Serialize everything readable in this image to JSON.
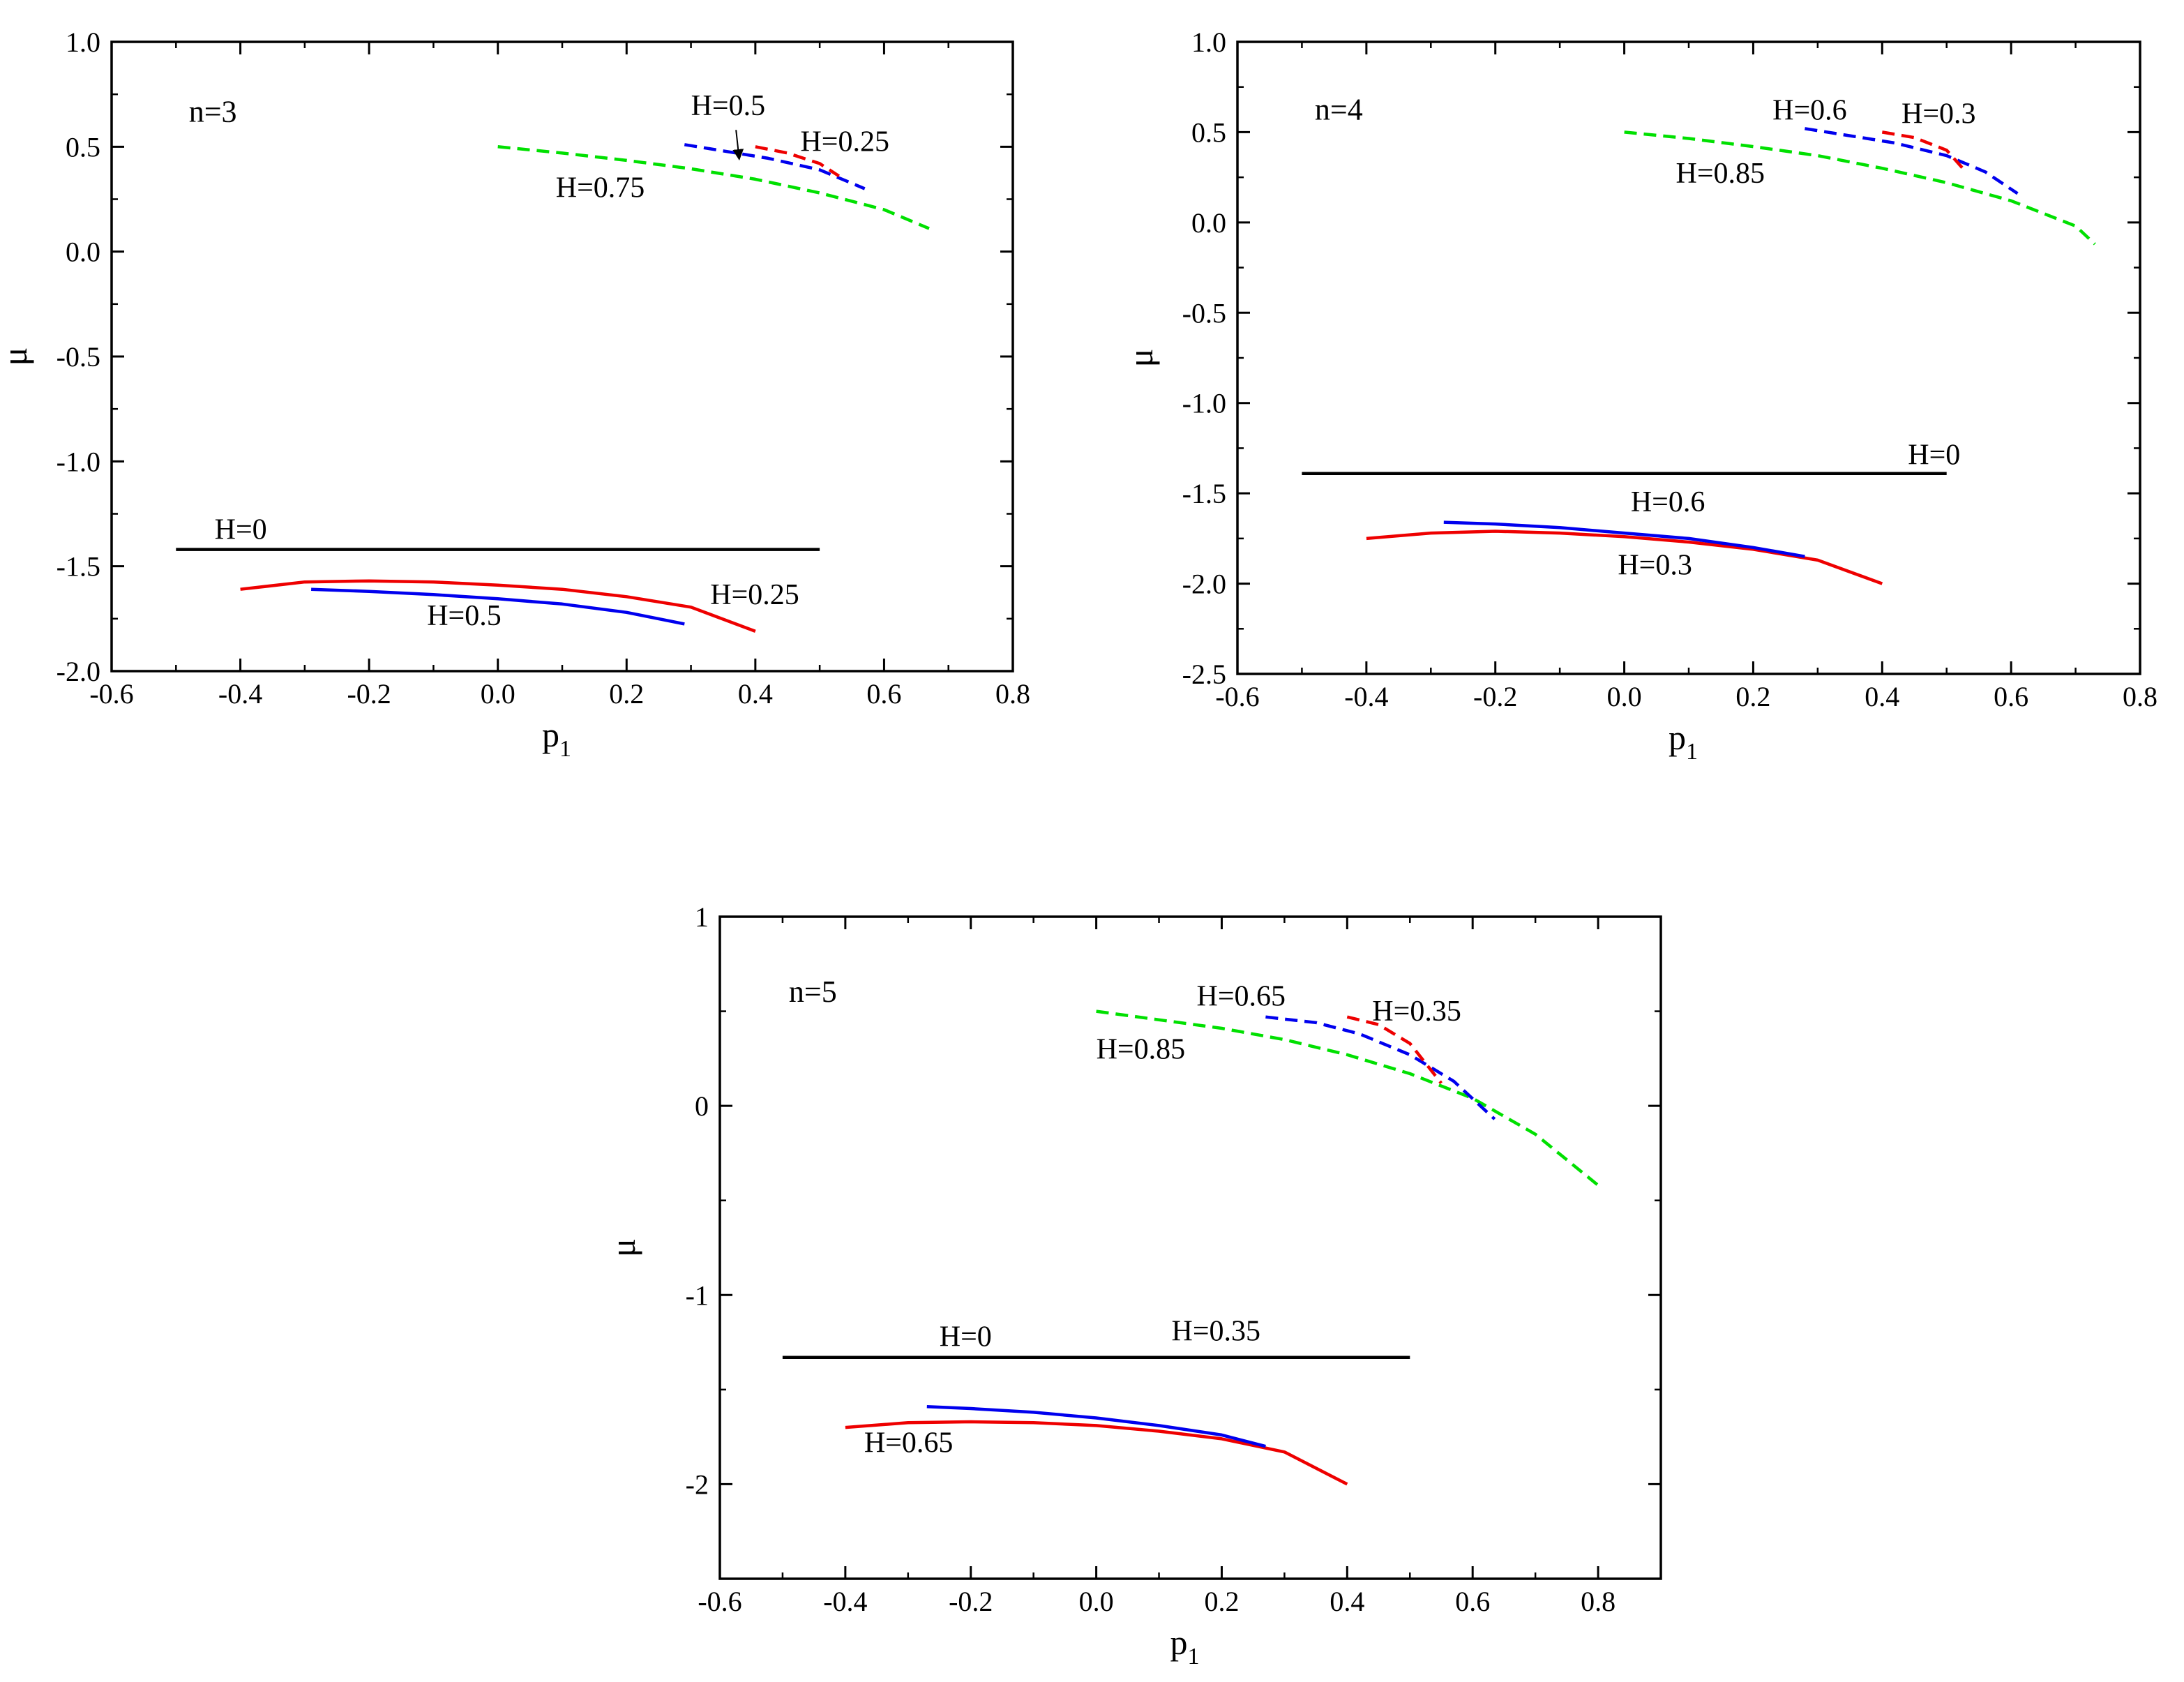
{
  "chart_data": [
    {
      "type": "line",
      "panel_label": "n=3",
      "xlabel": "p",
      "xlabel_sub": "1",
      "ylabel": "μ",
      "xlim": [
        -0.6,
        0.8
      ],
      "ylim": [
        -2.0,
        1.0
      ],
      "xticks": [
        -0.6,
        -0.4,
        -0.2,
        0.0,
        0.2,
        0.4,
        0.6,
        0.8
      ],
      "xtick_labels": [
        "-0.6",
        "-0.4",
        "-0.2",
        "0.0",
        "0.2",
        "0.4",
        "0.6",
        "0.8"
      ],
      "yticks": [
        1.0,
        0.5,
        0.0,
        -0.5,
        -1.0,
        -1.5,
        -2.0
      ],
      "ytick_labels": [
        "1.0",
        "0.5",
        "0.0",
        "-0.5",
        "-1.0",
        "-1.5",
        "-2.0"
      ],
      "series": [
        {
          "name": "H=0",
          "color": "#000000",
          "dash": false,
          "points": [
            [
              -0.5,
              -1.42
            ],
            [
              0.5,
              -1.42
            ]
          ]
        },
        {
          "name": "H=0.25 lower",
          "color": "#ee0000",
          "dash": false,
          "points": [
            [
              -0.4,
              -1.61
            ],
            [
              -0.3,
              -1.575
            ],
            [
              -0.2,
              -1.57
            ],
            [
              -0.1,
              -1.575
            ],
            [
              0.0,
              -1.59
            ],
            [
              0.1,
              -1.61
            ],
            [
              0.2,
              -1.645
            ],
            [
              0.3,
              -1.695
            ],
            [
              0.4,
              -1.81
            ]
          ]
        },
        {
          "name": "H=0.5 lower",
          "color": "#0000ee",
          "dash": false,
          "points": [
            [
              -0.29,
              -1.61
            ],
            [
              -0.2,
              -1.62
            ],
            [
              -0.1,
              -1.635
            ],
            [
              0.0,
              -1.655
            ],
            [
              0.1,
              -1.68
            ],
            [
              0.2,
              -1.72
            ],
            [
              0.29,
              -1.775
            ]
          ]
        },
        {
          "name": "H=0.75",
          "color": "#00e000",
          "dash": true,
          "points": [
            [
              0.0,
              0.5
            ],
            [
              0.1,
              0.47
            ],
            [
              0.2,
              0.435
            ],
            [
              0.3,
              0.395
            ],
            [
              0.4,
              0.345
            ],
            [
              0.5,
              0.28
            ],
            [
              0.6,
              0.2
            ],
            [
              0.67,
              0.11
            ]
          ]
        },
        {
          "name": "H=0.5 upper",
          "color": "#0000ee",
          "dash": true,
          "points": [
            [
              0.29,
              0.51
            ],
            [
              0.35,
              0.48
            ],
            [
              0.42,
              0.445
            ],
            [
              0.5,
              0.39
            ],
            [
              0.57,
              0.3
            ]
          ]
        },
        {
          "name": "H=0.25 upper",
          "color": "#ee0000",
          "dash": true,
          "points": [
            [
              0.4,
              0.5
            ],
            [
              0.45,
              0.47
            ],
            [
              0.5,
              0.42
            ],
            [
              0.53,
              0.36
            ]
          ]
        }
      ],
      "annotations": [
        {
          "text": "n=3",
          "x": -0.48,
          "y": 0.62,
          "kind": "panel"
        },
        {
          "text": "H=0",
          "x": -0.44,
          "y": -1.37
        },
        {
          "text": "H=0.25",
          "x": 0.33,
          "y": -1.68
        },
        {
          "text": "H=0.5",
          "x": -0.11,
          "y": -1.78
        },
        {
          "text": "H=0.75",
          "x": 0.09,
          "y": 0.26
        },
        {
          "text": "H=0.5",
          "x": 0.3,
          "y": 0.65
        },
        {
          "text": "H=0.25",
          "x": 0.47,
          "y": 0.48
        }
      ],
      "arrows": [
        {
          "from": [
            0.37,
            0.58
          ],
          "to": [
            0.375,
            0.44
          ]
        }
      ]
    },
    {
      "type": "line",
      "panel_label": "n=4",
      "xlabel": "p",
      "xlabel_sub": "1",
      "ylabel": "μ",
      "xlim": [
        -0.6,
        0.8
      ],
      "ylim": [
        -2.5,
        1.0
      ],
      "xticks": [
        -0.6,
        -0.4,
        -0.2,
        0.0,
        0.2,
        0.4,
        0.6,
        0.8
      ],
      "xtick_labels": [
        "-0.6",
        "-0.4",
        "-0.2",
        "0.0",
        "0.2",
        "0.4",
        "0.6",
        "0.8"
      ],
      "yticks": [
        1.0,
        0.5,
        0.0,
        -0.5,
        -1.0,
        -1.5,
        -2.0,
        -2.5
      ],
      "ytick_labels": [
        "1.0",
        "0.5",
        "0.0",
        "-0.5",
        "-1.0",
        "-1.5",
        "-2.0",
        "-2.5"
      ],
      "series": [
        {
          "name": "H=0",
          "color": "#000000",
          "dash": false,
          "points": [
            [
              -0.5,
              -1.39
            ],
            [
              0.5,
              -1.39
            ]
          ]
        },
        {
          "name": "H=0.3 lower",
          "color": "#ee0000",
          "dash": false,
          "points": [
            [
              -0.4,
              -1.75
            ],
            [
              -0.3,
              -1.72
            ],
            [
              -0.2,
              -1.71
            ],
            [
              -0.1,
              -1.72
            ],
            [
              0.0,
              -1.74
            ],
            [
              0.1,
              -1.77
            ],
            [
              0.2,
              -1.81
            ],
            [
              0.3,
              -1.87
            ],
            [
              0.4,
              -2.0
            ]
          ]
        },
        {
          "name": "H=0.6 lower",
          "color": "#0000ee",
          "dash": false,
          "points": [
            [
              -0.28,
              -1.66
            ],
            [
              -0.2,
              -1.67
            ],
            [
              -0.1,
              -1.69
            ],
            [
              0.0,
              -1.72
            ],
            [
              0.1,
              -1.75
            ],
            [
              0.2,
              -1.8
            ],
            [
              0.28,
              -1.85
            ]
          ]
        },
        {
          "name": "H=0.85",
          "color": "#00e000",
          "dash": true,
          "points": [
            [
              0.0,
              0.5
            ],
            [
              0.1,
              0.465
            ],
            [
              0.2,
              0.42
            ],
            [
              0.3,
              0.37
            ],
            [
              0.4,
              0.3
            ],
            [
              0.5,
              0.22
            ],
            [
              0.6,
              0.12
            ],
            [
              0.7,
              -0.02
            ],
            [
              0.73,
              -0.12
            ]
          ]
        },
        {
          "name": "H=0.6 upper",
          "color": "#0000ee",
          "dash": true,
          "points": [
            [
              0.28,
              0.52
            ],
            [
              0.35,
              0.48
            ],
            [
              0.42,
              0.44
            ],
            [
              0.5,
              0.37
            ],
            [
              0.56,
              0.28
            ],
            [
              0.61,
              0.16
            ]
          ]
        },
        {
          "name": "H=0.3 upper",
          "color": "#ee0000",
          "dash": true,
          "points": [
            [
              0.4,
              0.5
            ],
            [
              0.45,
              0.47
            ],
            [
              0.5,
              0.4
            ],
            [
              0.53,
              0.28
            ]
          ]
        }
      ],
      "annotations": [
        {
          "text": "n=4",
          "x": -0.48,
          "y": 0.57,
          "kind": "panel"
        },
        {
          "text": "H=0",
          "x": 0.44,
          "y": -1.34
        },
        {
          "text": "H=0.6",
          "x": 0.01,
          "y": -1.6
        },
        {
          "text": "H=0.3",
          "x": -0.01,
          "y": -1.95
        },
        {
          "text": "H=0.85",
          "x": 0.08,
          "y": 0.22
        },
        {
          "text": "H=0.6",
          "x": 0.23,
          "y": 0.57
        },
        {
          "text": "H=0.3",
          "x": 0.43,
          "y": 0.55
        }
      ],
      "arrows": []
    },
    {
      "type": "line",
      "panel_label": "n=5",
      "xlabel": "p",
      "xlabel_sub": "1",
      "ylabel": "μ",
      "xlim": [
        -0.6,
        0.9
      ],
      "ylim": [
        -2.5,
        1.0
      ],
      "xticks": [
        -0.6,
        -0.4,
        -0.2,
        0.0,
        0.2,
        0.4,
        0.6,
        0.8
      ],
      "xtick_labels": [
        "-0.6",
        "-0.4",
        "-0.2",
        "0.0",
        "0.2",
        "0.4",
        "0.6",
        "0.8"
      ],
      "yticks": [
        1,
        0,
        -1,
        -2
      ],
      "ytick_labels": [
        "1",
        "0",
        "-1",
        "-2"
      ],
      "series": [
        {
          "name": "H=0",
          "color": "#000000",
          "dash": false,
          "points": [
            [
              -0.5,
              -1.33
            ],
            [
              0.5,
              -1.33
            ]
          ]
        },
        {
          "name": "H=0.65 lower",
          "color": "#ee0000",
          "dash": false,
          "points": [
            [
              -0.4,
              -1.7
            ],
            [
              -0.3,
              -1.675
            ],
            [
              -0.2,
              -1.67
            ],
            [
              -0.1,
              -1.675
            ],
            [
              0.0,
              -1.69
            ],
            [
              0.1,
              -1.72
            ],
            [
              0.2,
              -1.76
            ],
            [
              0.3,
              -1.83
            ],
            [
              0.4,
              -2.0
            ]
          ]
        },
        {
          "name": "H=0.35 lower",
          "color": "#0000ee",
          "dash": false,
          "points": [
            [
              -0.27,
              -1.59
            ],
            [
              -0.2,
              -1.6
            ],
            [
              -0.1,
              -1.62
            ],
            [
              0.0,
              -1.65
            ],
            [
              0.1,
              -1.69
            ],
            [
              0.2,
              -1.74
            ],
            [
              0.27,
              -1.8
            ]
          ]
        },
        {
          "name": "H=0.85",
          "color": "#00e000",
          "dash": true,
          "points": [
            [
              0.0,
              0.5
            ],
            [
              0.1,
              0.455
            ],
            [
              0.2,
              0.41
            ],
            [
              0.3,
              0.35
            ],
            [
              0.4,
              0.27
            ],
            [
              0.5,
              0.17
            ],
            [
              0.6,
              0.04
            ],
            [
              0.7,
              -0.15
            ],
            [
              0.8,
              -0.42
            ]
          ]
        },
        {
          "name": "H=0.65 upper",
          "color": "#0000ee",
          "dash": true,
          "points": [
            [
              0.27,
              0.47
            ],
            [
              0.35,
              0.44
            ],
            [
              0.42,
              0.38
            ],
            [
              0.5,
              0.27
            ],
            [
              0.57,
              0.13
            ],
            [
              0.635,
              -0.07
            ]
          ]
        },
        {
          "name": "H=0.35 upper",
          "color": "#ee0000",
          "dash": true,
          "points": [
            [
              0.4,
              0.47
            ],
            [
              0.45,
              0.43
            ],
            [
              0.5,
              0.33
            ],
            [
              0.55,
              0.12
            ]
          ]
        }
      ],
      "annotations": [
        {
          "text": "n=5",
          "x": -0.49,
          "y": 0.55,
          "kind": "panel"
        },
        {
          "text": "H=0",
          "x": -0.25,
          "y": -1.27
        },
        {
          "text": "H=0.65",
          "x": -0.37,
          "y": -1.83
        },
        {
          "text": "H=0.35",
          "x": 0.12,
          "y": -1.24
        },
        {
          "text": "H=0.85",
          "x": 0.0,
          "y": 0.25
        },
        {
          "text": "H=0.65",
          "x": 0.16,
          "y": 0.53
        },
        {
          "text": "H=0.35",
          "x": 0.44,
          "y": 0.45
        }
      ],
      "arrows": []
    }
  ]
}
